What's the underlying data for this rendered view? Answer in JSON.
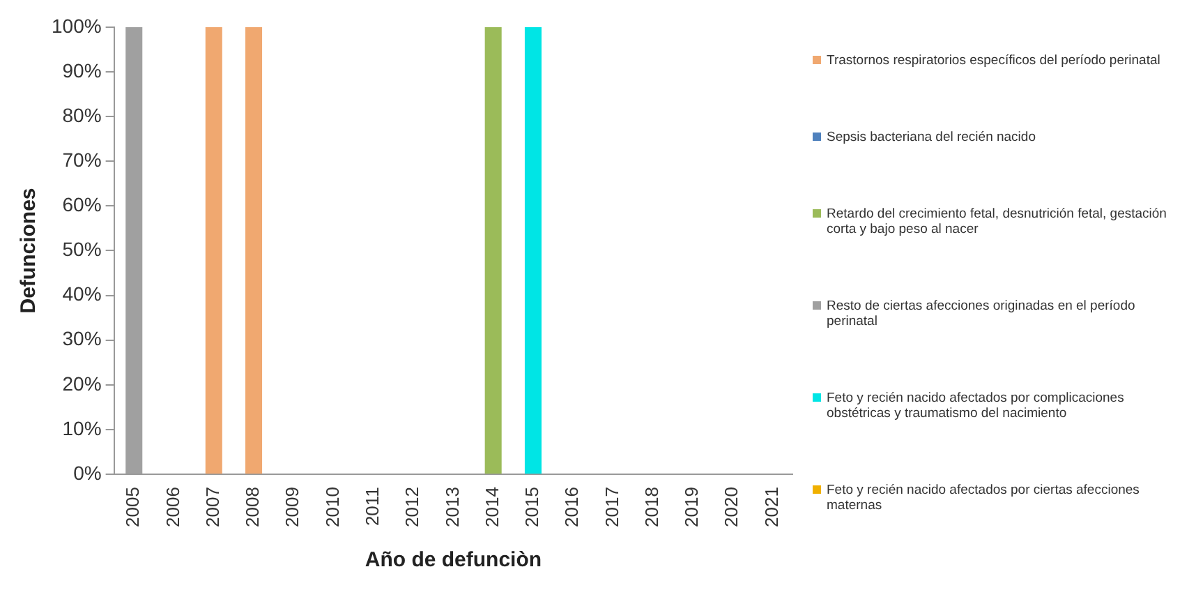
{
  "chart_data": {
    "type": "bar",
    "stacked": true,
    "xlabel": "Año de defunciòn",
    "ylabel": "Defunciones",
    "categories": [
      "2005",
      "2006",
      "2007",
      "2008",
      "2009",
      "2010",
      "2011",
      "2012",
      "2013",
      "2014",
      "2015",
      "2016",
      "2017",
      "2018",
      "2019",
      "2020",
      "2021"
    ],
    "ylim": [
      0,
      100
    ],
    "yticks": [
      {
        "value": 0,
        "label": "0%"
      },
      {
        "value": 10,
        "label": "10%"
      },
      {
        "value": 20,
        "label": "20%"
      },
      {
        "value": 30,
        "label": "30%"
      },
      {
        "value": 40,
        "label": "40%"
      },
      {
        "value": 50,
        "label": "50%"
      },
      {
        "value": 60,
        "label": "60%"
      },
      {
        "value": 70,
        "label": "70%"
      },
      {
        "value": 80,
        "label": "80%"
      },
      {
        "value": 90,
        "label": "90%"
      },
      {
        "value": 100,
        "label": "100%"
      }
    ],
    "grid": false,
    "legend": "right",
    "series": [
      {
        "name": "Trastornos respiratorios específicos del período perinatal",
        "color": "#f0a870",
        "values": [
          0,
          0,
          100,
          100,
          0,
          0,
          0,
          0,
          0,
          0,
          0,
          0,
          0,
          0,
          0,
          0,
          0
        ]
      },
      {
        "name": "Sepsis bacteriana del recién nacido",
        "color": "#4f81bd",
        "values": [
          0,
          0,
          0,
          0,
          0,
          0,
          0,
          0,
          0,
          0,
          0,
          0,
          0,
          0,
          0,
          0,
          0
        ]
      },
      {
        "name": "Retardo del crecimiento fetal, desnutrición fetal, gestación corta y bajo peso al nacer",
        "color": "#9bbb59",
        "values": [
          0,
          0,
          0,
          0,
          0,
          0,
          0,
          0,
          0,
          100,
          0,
          0,
          0,
          0,
          0,
          0,
          0
        ]
      },
      {
        "name": "Resto de ciertas afecciones originadas en el período perinatal",
        "color": "#a0a0a0",
        "values": [
          100,
          0,
          0,
          0,
          0,
          0,
          0,
          0,
          0,
          0,
          0,
          0,
          0,
          0,
          0,
          0,
          0
        ]
      },
      {
        "name": "Feto y recién nacido afectados por complicaciones obstétricas y traumatismo del nacimiento",
        "color": "#00e5e5",
        "values": [
          0,
          0,
          0,
          0,
          0,
          0,
          0,
          0,
          0,
          0,
          100,
          0,
          0,
          0,
          0,
          0,
          0
        ]
      },
      {
        "name": "Feto y recién nacido afectados por ciertas afecciones maternas",
        "color": "#f0b000",
        "values": [
          0,
          0,
          0,
          0,
          0,
          0,
          0,
          0,
          0,
          0,
          0,
          0,
          0,
          0,
          0,
          0,
          0
        ]
      }
    ]
  }
}
